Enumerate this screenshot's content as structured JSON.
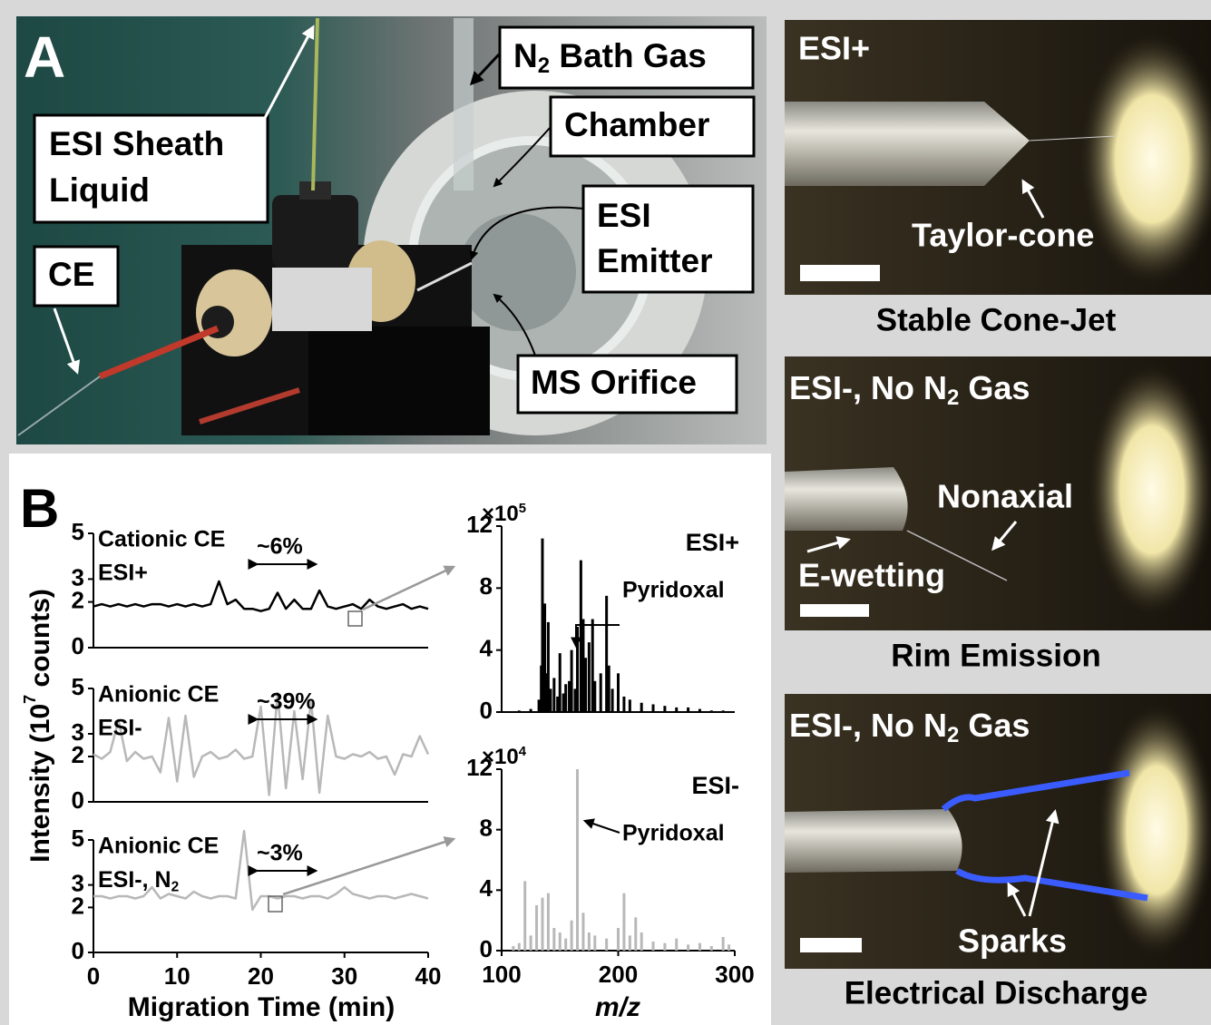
{
  "panel_a": {
    "letter": "A",
    "labels": {
      "sheath": [
        "ESI Sheath",
        "Liquid"
      ],
      "ce": "CE",
      "bath_gas": [
        "N",
        "2",
        " Bath Gas"
      ],
      "chamber": "Chamber",
      "emitter": [
        "ESI",
        "Emitter"
      ],
      "orifice": "MS Orifice"
    }
  },
  "photos": [
    {
      "mode": "ESI+",
      "annotations": [
        "Taylor-cone"
      ],
      "caption": "Stable Cone-Jet"
    },
    {
      "mode": [
        "ESI-, No N",
        "2",
        " Gas"
      ],
      "annotations": [
        "Nonaxial",
        "E-wetting"
      ],
      "caption": "Rim Emission"
    },
    {
      "mode": [
        "ESI-, No N",
        "2",
        " Gas"
      ],
      "annotations": [
        "Sparks"
      ],
      "caption": "Electrical Discharge"
    }
  ],
  "panel_b": {
    "letter": "B",
    "ylabel": [
      "Intensity (10",
      "7",
      " counts)"
    ],
    "xlabel": "Migration Time (min)",
    "mz_label": "m/z"
  },
  "chart_data": [
    {
      "type": "line",
      "labels": [
        "Cationic CE",
        "ESI+"
      ],
      "annotation": "~6%",
      "xlim": [
        0,
        40
      ],
      "ylim": [
        0,
        5
      ],
      "yticks": [
        0,
        2,
        3,
        5
      ],
      "x": [
        0,
        1,
        2,
        3,
        4,
        5,
        6,
        7,
        8,
        9,
        10,
        11,
        12,
        13,
        14,
        15,
        16,
        17,
        18,
        19,
        20,
        21,
        22,
        23,
        24,
        25,
        26,
        27,
        28,
        29,
        30,
        31,
        32,
        33,
        34,
        35,
        36,
        37,
        38,
        39,
        40
      ],
      "series": [
        {
          "color": "#000000",
          "values": [
            1.8,
            1.9,
            1.8,
            1.9,
            1.8,
            1.9,
            1.8,
            1.9,
            1.9,
            1.8,
            1.9,
            1.8,
            1.9,
            1.8,
            1.9,
            2.9,
            1.9,
            2.1,
            1.7,
            1.7,
            1.6,
            1.7,
            2.4,
            1.7,
            2.1,
            1.7,
            1.7,
            2.5,
            1.8,
            1.7,
            1.8,
            1.9,
            1.7,
            2.1,
            1.8,
            1.7,
            1.8,
            1.9,
            1.7,
            1.8,
            1.7
          ]
        }
      ]
    },
    {
      "type": "line",
      "labels": [
        "Anionic CE",
        "ESI-"
      ],
      "annotation": "~39%",
      "xlim": [
        0,
        40
      ],
      "ylim": [
        0,
        5
      ],
      "yticks": [
        0,
        2,
        3,
        5
      ],
      "x": [
        0,
        1,
        2,
        3,
        4,
        5,
        6,
        7,
        8,
        9,
        10,
        11,
        12,
        13,
        14,
        15,
        16,
        17,
        18,
        19,
        20,
        21,
        22,
        23,
        24,
        25,
        26,
        27,
        28,
        29,
        30,
        31,
        32,
        33,
        34,
        35,
        36,
        37,
        38,
        39,
        40
      ],
      "series": [
        {
          "color": "#b8b8b8",
          "values": [
            2.1,
            1.9,
            2.2,
            3.6,
            1.8,
            2.2,
            1.9,
            2.0,
            1.3,
            3.7,
            0.9,
            3.8,
            1.1,
            2.0,
            2.2,
            1.9,
            2.0,
            2.3,
            1.9,
            2.0,
            4.2,
            0.3,
            4.8,
            0.6,
            4.0,
            1.0,
            4.5,
            0.4,
            3.8,
            2.0,
            1.9,
            2.1,
            2.0,
            2.2,
            1.9,
            2.0,
            1.2,
            2.1,
            2.0,
            2.9,
            2.1
          ]
        }
      ]
    },
    {
      "type": "line",
      "labels": [
        "Anionic CE",
        [
          "ESI-, N",
          "2"
        ]
      ],
      "annotation": "~3%",
      "xlim": [
        0,
        40
      ],
      "xticks": [
        0,
        10,
        20,
        30,
        40
      ],
      "ylim": [
        0,
        5
      ],
      "yticks": [
        0,
        2,
        3,
        5
      ],
      "x": [
        0,
        1,
        2,
        3,
        4,
        5,
        6,
        7,
        8,
        9,
        10,
        11,
        12,
        13,
        14,
        15,
        16,
        17,
        18,
        19,
        20,
        21,
        22,
        23,
        24,
        25,
        26,
        27,
        28,
        29,
        30,
        31,
        32,
        33,
        34,
        35,
        36,
        37,
        38,
        39,
        40
      ],
      "series": [
        {
          "color": "#b8b8b8",
          "values": [
            2.5,
            2.5,
            2.4,
            2.5,
            2.5,
            2.4,
            2.5,
            2.9,
            2.4,
            2.6,
            2.5,
            2.4,
            2.7,
            2.5,
            2.4,
            2.5,
            2.5,
            2.4,
            5.4,
            1.9,
            2.5,
            2.5,
            2.4,
            2.5,
            2.5,
            2.4,
            2.5,
            2.5,
            2.4,
            2.6,
            2.9,
            2.6,
            2.5,
            2.4,
            2.5,
            2.5,
            2.4,
            2.5,
            2.6,
            2.5,
            2.4
          ]
        }
      ]
    },
    {
      "type": "bar",
      "mode": "ESI+",
      "annotation": "Pyridoxal",
      "multiplier": [
        "×10",
        "5"
      ],
      "color": "#000000",
      "xlim": [
        100,
        300
      ],
      "ylim": [
        0,
        12
      ],
      "yticks": [
        0,
        4,
        8,
        12
      ],
      "x": [
        115,
        125,
        132,
        134,
        135,
        136,
        137,
        138,
        140,
        142,
        145,
        148,
        150,
        153,
        155,
        158,
        160,
        163,
        165,
        168,
        170,
        172,
        175,
        178,
        180,
        185,
        190,
        192,
        195,
        200,
        205,
        210,
        220,
        230,
        240,
        250,
        260,
        270,
        280,
        290
      ],
      "values": [
        0.1,
        0.2,
        0.8,
        3.0,
        11.2,
        5.0,
        7.0,
        2.5,
        5.8,
        1.5,
        2.2,
        1.0,
        3.8,
        1.2,
        1.8,
        2.0,
        4.0,
        1.5,
        5.5,
        9.8,
        6.0,
        3.5,
        4.5,
        6.0,
        2.0,
        2.5,
        7.5,
        3.0,
        1.5,
        2.5,
        1.0,
        0.8,
        0.6,
        0.5,
        0.4,
        0.3,
        0.3,
        0.2,
        0.1,
        0.1
      ]
    },
    {
      "type": "bar",
      "mode": "ESI-",
      "annotation": "Pyridoxal",
      "multiplier": [
        "×10",
        "4"
      ],
      "color": "#b8b8b8",
      "xlim": [
        100,
        300
      ],
      "xticks": [
        100,
        200,
        300
      ],
      "ylim": [
        0,
        12
      ],
      "yticks": [
        0,
        4,
        8,
        12
      ],
      "x": [
        110,
        115,
        120,
        125,
        130,
        135,
        140,
        145,
        150,
        155,
        160,
        165,
        170,
        175,
        180,
        190,
        200,
        205,
        210,
        215,
        220,
        230,
        240,
        250,
        260,
        270,
        280,
        290,
        295
      ],
      "values": [
        0.3,
        0.5,
        4.6,
        1.0,
        3.0,
        3.5,
        3.8,
        1.5,
        1.2,
        0.8,
        2.0,
        12.0,
        2.5,
        1.2,
        1.0,
        0.8,
        1.5,
        3.8,
        1.0,
        2.2,
        1.2,
        0.6,
        0.5,
        0.8,
        0.4,
        0.5,
        0.3,
        0.9,
        0.4
      ]
    }
  ]
}
